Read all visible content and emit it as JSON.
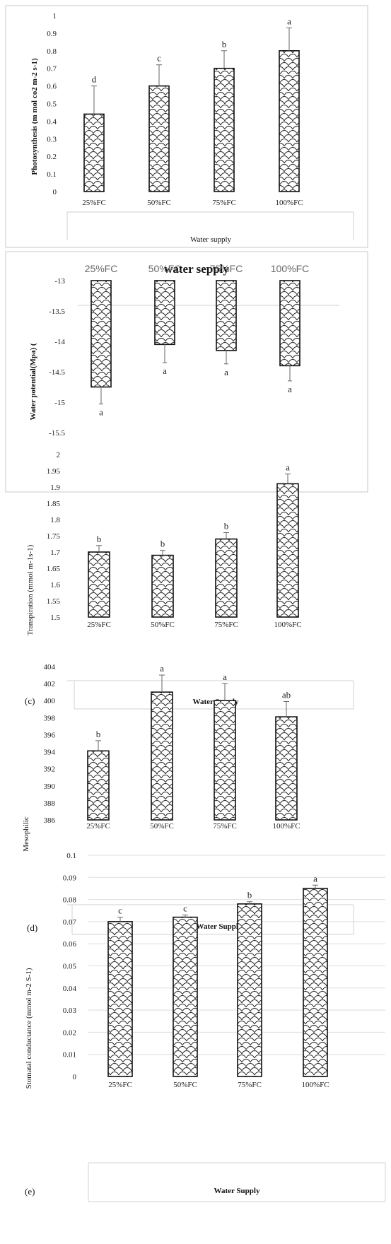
{
  "chart_data": [
    {
      "type": "bar",
      "categories": [
        "25%FC",
        "50%FC",
        "75%FC",
        "100%FC"
      ],
      "values": [
        0.44,
        0.6,
        0.7,
        0.8
      ],
      "errors": [
        0.16,
        0.12,
        0.1,
        0.13
      ],
      "letters": [
        "d",
        "c",
        "b",
        "a"
      ],
      "title": "",
      "xlabel": "Water supply",
      "ylabel": "Photosynthesis (m mol co2 m-2 s-1)",
      "panel_label": "",
      "ylim": [
        0,
        1
      ],
      "ticks": [
        "0",
        "0.1",
        "0.2",
        "0.3",
        "0.4",
        "0.5",
        "0.6",
        "0.7",
        "0.8",
        "0.9",
        "1"
      ],
      "grid": false,
      "bar_fill": "#ffffff"
    },
    {
      "type": "bar",
      "categories": [
        "25%FC",
        "50%FC",
        "75%FC",
        "100%FC"
      ],
      "values": [
        -14.75,
        -14.05,
        -14.15,
        -14.4
      ],
      "errors": [
        0.28,
        0.3,
        0.22,
        0.25
      ],
      "letters": [
        "a",
        "a",
        "a",
        "a"
      ],
      "title": "water sepply",
      "xlabel": "",
      "ylabel": "Water potential(Mpa) (",
      "panel_label": "",
      "ylim": [
        -15.5,
        -13
      ],
      "ticks": [
        "-15.5",
        "-15",
        "-14.5",
        "-14",
        "-13.5",
        "-13"
      ],
      "grid": false,
      "categories_position": "top"
    },
    {
      "type": "bar",
      "categories": [
        "25%FC",
        "50%FC",
        "75%FC",
        "100%FC"
      ],
      "values": [
        1.7,
        1.69,
        1.74,
        1.91
      ],
      "errors": [
        0.02,
        0.015,
        0.02,
        0.03
      ],
      "letters": [
        "b",
        "b",
        "b",
        "a"
      ],
      "title": "",
      "xlabel": "Water Supply",
      "ylabel": "Transpiration (mmol m-1s-1)",
      "panel_label": "(c)",
      "ylim": [
        1.5,
        2
      ],
      "ticks": [
        "1.5",
        "1.55",
        "1.6",
        "1.65",
        "1.7",
        "1.75",
        "1.8",
        "1.85",
        "1.9",
        "1.95",
        "2"
      ],
      "grid": false
    },
    {
      "type": "bar",
      "categories": [
        "25%FC",
        "50%FC",
        "75%FC",
        "100%FC"
      ],
      "values": [
        394.1,
        401.0,
        400.0,
        398.1
      ],
      "errors": [
        1.2,
        2.0,
        2.0,
        1.8
      ],
      "letters": [
        "b",
        "a",
        "a",
        "ab"
      ],
      "title": "",
      "xlabel": "Water Supply",
      "ylabel": "Mesophilic",
      "panel_label": "(d)",
      "ylim": [
        386,
        404
      ],
      "ticks": [
        "386",
        "388",
        "390",
        "392",
        "394",
        "396",
        "398",
        "400",
        "402",
        "404"
      ],
      "grid": false
    },
    {
      "type": "bar",
      "categories": [
        "25%FC",
        "50%FC",
        "75%FC",
        "100%FC"
      ],
      "values": [
        0.07,
        0.072,
        0.078,
        0.085
      ],
      "errors": [
        0.002,
        0.001,
        0.001,
        0.0015
      ],
      "letters": [
        "c",
        "c",
        "b",
        "a"
      ],
      "title": "",
      "xlabel": "Water Supply",
      "ylabel": "Stomatal conductance (mmol m-2 S-1)",
      "panel_label": "(e)",
      "ylim": [
        0,
        0.1
      ],
      "ticks": [
        "0",
        "0.01",
        "0.02",
        "0.03",
        "0.04",
        "0.05",
        "0.06",
        "0.07",
        "0.08",
        "0.09",
        "0.1"
      ],
      "grid": true
    }
  ]
}
